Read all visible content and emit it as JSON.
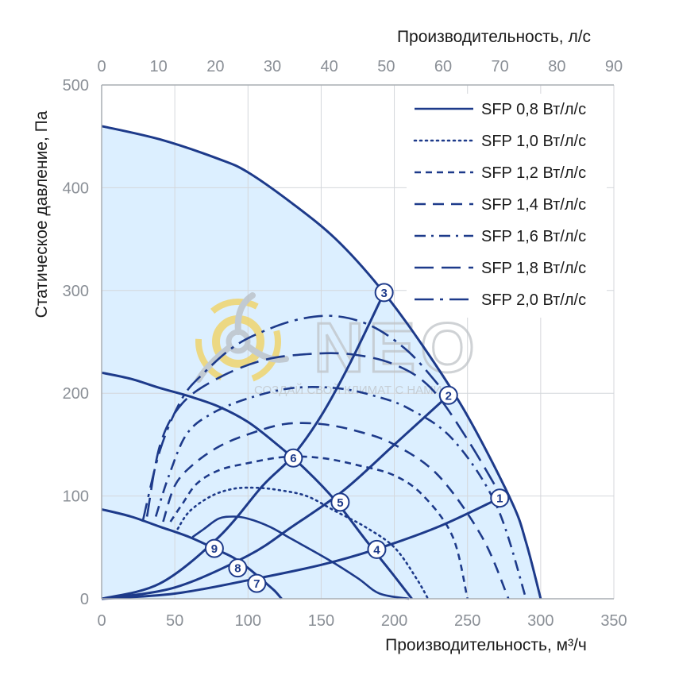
{
  "chart_data": {
    "type": "line",
    "title": "",
    "xlabel": "Производительность, м³/ч",
    "x2label": "Производительность, л/с",
    "ylabel": "Статическое давление, Па",
    "xlim": [
      0,
      350
    ],
    "x2lim": [
      0,
      90
    ],
    "ylim": [
      0,
      500
    ],
    "xticks": [
      "0",
      "50",
      "100",
      "150",
      "200",
      "250",
      "300",
      "350"
    ],
    "x2ticks": [
      "0",
      "10",
      "20",
      "30",
      "40",
      "50",
      "60",
      "70",
      "80",
      "90"
    ],
    "yticks": [
      "0",
      "100",
      "200",
      "300",
      "400",
      "500"
    ],
    "grid": true,
    "legend_position": "top-right",
    "watermark": {
      "brand": "NEO",
      "slogan": "СОЗДАЙ СВОЙ КЛИМАТ С НАМИ"
    },
    "legend": [
      {
        "label": "SFP 0,8 Вт/л/с",
        "style": "solid"
      },
      {
        "label": "SFP 1,0 Вт/л/с",
        "style": "dotted"
      },
      {
        "label": "SFP 1,2 Вт/л/с",
        "style": "short-dash"
      },
      {
        "label": "SFP 1,4 Вт/л/с",
        "style": "dash"
      },
      {
        "label": "SFP 1,6 Вт/л/с",
        "style": "dash-dot"
      },
      {
        "label": "SFP 1,8 Вт/л/с",
        "style": "long-dash"
      },
      {
        "label": "SFP 2,0 Вт/л/с",
        "style": "long-dash-dot"
      }
    ],
    "fan_curves": [
      {
        "name": "high",
        "x": [
          0,
          40,
          80,
          100,
          130,
          160,
          190,
          220,
          250,
          280,
          290,
          300
        ],
        "y": [
          460,
          447,
          428,
          415,
          385,
          350,
          303,
          245,
          178,
          95,
          55,
          0
        ]
      },
      {
        "name": "medium",
        "x": [
          0,
          20,
          40,
          60,
          80,
          100,
          120,
          140,
          160,
          180,
          200,
          212
        ],
        "y": [
          220,
          214,
          205,
          197,
          187,
          172,
          150,
          125,
          95,
          58,
          22,
          0
        ]
      },
      {
        "name": "low",
        "x": [
          0,
          20,
          40,
          60,
          80,
          90,
          100,
          110,
          118,
          123
        ],
        "y": [
          87,
          80,
          70,
          60,
          47,
          40,
          30,
          18,
          8,
          0
        ]
      }
    ],
    "system_curves": [
      {
        "name": "high-resistance",
        "x": [
          0,
          40,
          80,
          110,
          130,
          150,
          170,
          193
        ],
        "y": [
          0,
          15,
          60,
          110,
          138,
          178,
          230,
          298
        ]
      },
      {
        "name": "medium-resistance",
        "x": [
          0,
          50,
          100,
          130,
          165,
          200,
          237
        ],
        "y": [
          0,
          11,
          42,
          70,
          105,
          150,
          198
        ]
      },
      {
        "name": "low-resistance",
        "x": [
          0,
          50,
          100,
          150,
          187,
          230,
          272
        ],
        "y": [
          0,
          5,
          18,
          33,
          48,
          70,
          98
        ]
      }
    ],
    "sfp_curves": [
      {
        "label": "SFP 0,8 Вт/л/с",
        "style": "solid",
        "x": [
          62,
          70,
          80,
          90,
          100,
          115,
          130,
          155,
          175,
          190,
          210
        ],
        "y": [
          60,
          68,
          78,
          80,
          78,
          70,
          58,
          38,
          20,
          5,
          0
        ]
      },
      {
        "label": "SFP 1,0 Вт/л/с",
        "style": "dotted",
        "x": [
          52,
          60,
          75,
          90,
          105,
          120,
          140,
          160,
          180,
          200,
          215,
          223
        ],
        "y": [
          68,
          85,
          100,
          107,
          108,
          106,
          100,
          85,
          70,
          50,
          20,
          0
        ]
      },
      {
        "label": "SFP 1,2 Вт/л/с",
        "style": "short-dash",
        "x": [
          47,
          55,
          65,
          80,
          100,
          125,
          150,
          175,
          200,
          220,
          240,
          250
        ],
        "y": [
          75,
          92,
          112,
          125,
          132,
          138,
          137,
          130,
          120,
          100,
          60,
          0
        ]
      },
      {
        "label": "SFP 1,4 Вт/л/с",
        "style": "dash",
        "x": [
          42,
          50,
          62,
          80,
          100,
          125,
          150,
          175,
          200,
          230,
          260,
          278
        ],
        "y": [
          75,
          110,
          130,
          148,
          160,
          170,
          170,
          163,
          150,
          120,
          60,
          0
        ]
      },
      {
        "label": "SFP 1,6 Вт/л/с",
        "style": "dash-dot",
        "x": [
          37,
          46,
          58,
          75,
          100,
          130,
          160,
          185,
          210,
          240,
          270,
          290
        ],
        "y": [
          80,
          120,
          160,
          180,
          195,
          205,
          205,
          198,
          185,
          155,
          90,
          0
        ]
      },
      {
        "label": "SFP 1,8 Вт/л/с",
        "style": "long-dash",
        "x": [
          31,
          40,
          55,
          80,
          110,
          140,
          170,
          200,
          225,
          250,
          275
        ],
        "y": [
          80,
          150,
          190,
          215,
          232,
          238,
          238,
          228,
          205,
          155,
          95
        ]
      },
      {
        "label": "SFP 2,0 Вт/л/с",
        "style": "long-dash-dot",
        "x": [
          28,
          40,
          55,
          70,
          90,
          110,
          135,
          160,
          185,
          210,
          232
        ],
        "y": [
          75,
          145,
          195,
          220,
          245,
          260,
          272,
          275,
          265,
          240,
          205
        ]
      }
    ],
    "markers": [
      {
        "label": "1",
        "x": 272,
        "y": 98
      },
      {
        "label": "2",
        "x": 237,
        "y": 198
      },
      {
        "label": "3",
        "x": 193,
        "y": 298
      },
      {
        "label": "4",
        "x": 188,
        "y": 48
      },
      {
        "label": "5",
        "x": 163,
        "y": 94
      },
      {
        "label": "6",
        "x": 131,
        "y": 137
      },
      {
        "label": "7",
        "x": 106,
        "y": 15
      },
      {
        "label": "8",
        "x": 93,
        "y": 30
      },
      {
        "label": "9",
        "x": 77,
        "y": 49
      }
    ]
  }
}
